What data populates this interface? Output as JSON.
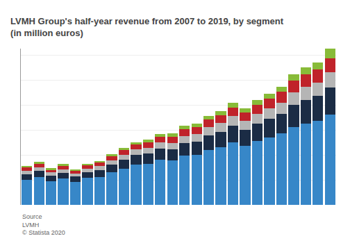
{
  "chart_data": {
    "type": "bar",
    "title": "LVMH Group's half-year revenue from 2007 to 2019, by segment (in million euros)",
    "categories": [
      null,
      null,
      null,
      null,
      null,
      null,
      null,
      null,
      null,
      null,
      null,
      null,
      null,
      null,
      null,
      null,
      null,
      null,
      null,
      null,
      null,
      null,
      null,
      null,
      null,
      null
    ],
    "series": [
      {
        "color": "#3787c8",
        "values": [
          2000,
          2200,
          1900,
          2100,
          1850,
          2150,
          2250,
          2600,
          2900,
          3200,
          3300,
          3600,
          3550,
          3950,
          4000,
          4400,
          4600,
          5000,
          4700,
          5100,
          5400,
          5700,
          6200,
          6500,
          6700,
          7200
        ]
      },
      {
        "color": "#1b2c45",
        "values": [
          450,
          500,
          430,
          470,
          420,
          470,
          530,
          600,
          700,
          780,
          800,
          880,
          900,
          1000,
          1050,
          1150,
          1250,
          1350,
          1300,
          1400,
          1500,
          1600,
          1800,
          1900,
          2000,
          2200
        ]
      },
      {
        "color": "#b5b5b5",
        "values": [
          280,
          310,
          260,
          290,
          250,
          280,
          310,
          350,
          400,
          440,
          460,
          500,
          520,
          570,
          600,
          650,
          690,
          750,
          720,
          780,
          830,
          890,
          1010,
          1060,
          1100,
          1200
        ]
      },
      {
        "color": "#c0232a",
        "values": [
          250,
          280,
          240,
          270,
          230,
          260,
          290,
          330,
          370,
          400,
          420,
          460,
          480,
          530,
          560,
          610,
          650,
          700,
          670,
          730,
          780,
          840,
          950,
          1000,
          1050,
          1140
        ]
      },
      {
        "color": "#88bb38",
        "values": [
          120,
          140,
          110,
          130,
          105,
          120,
          140,
          160,
          185,
          205,
          215,
          235,
          245,
          275,
          285,
          315,
          335,
          365,
          345,
          375,
          405,
          435,
          490,
          520,
          550,
          760
        ]
      }
    ],
    "stacked": true,
    "ylim": [
      0,
      12500
    ],
    "yticks": [
      2000,
      4000,
      6000,
      8000,
      10000,
      12000
    ],
    "grid": true,
    "tick_labels": false,
    "annotations": [
      "Source\nLVMH\n© Statista 2020"
    ]
  }
}
